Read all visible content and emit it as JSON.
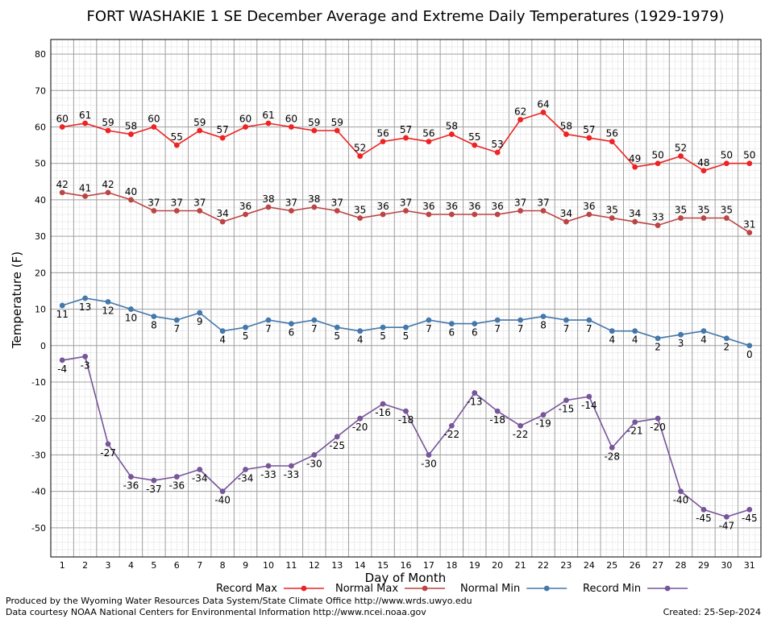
{
  "chart_data": {
    "type": "line",
    "title": "FORT WASHAKIE 1 SE December Average and Extreme Daily Temperatures (1929-1979)",
    "xlabel": "Day of Month",
    "ylabel": "Temperature (F)",
    "ylim": [
      -58,
      84
    ],
    "yticks": [
      -50,
      -40,
      -30,
      -20,
      -10,
      0,
      10,
      20,
      30,
      40,
      50,
      60,
      70,
      80
    ],
    "x": [
      1,
      2,
      3,
      4,
      5,
      6,
      7,
      8,
      9,
      10,
      11,
      12,
      13,
      14,
      15,
      16,
      17,
      18,
      19,
      20,
      21,
      22,
      23,
      24,
      25,
      26,
      27,
      28,
      29,
      30,
      31
    ],
    "grid": true,
    "legend_position": "bottom",
    "series": [
      {
        "name": "Record Max",
        "color": "#ee2222",
        "label_pos": "above",
        "values": [
          60,
          61,
          59,
          58,
          60,
          55,
          59,
          57,
          60,
          61,
          60,
          59,
          59,
          52,
          56,
          57,
          56,
          58,
          55,
          53,
          62,
          64,
          58,
          57,
          56,
          49,
          50,
          52,
          48,
          50,
          50
        ]
      },
      {
        "name": "Normal Max",
        "color": "#bb4444",
        "label_pos": "above",
        "values": [
          42,
          41,
          42,
          40,
          37,
          37,
          37,
          34,
          36,
          38,
          37,
          38,
          37,
          35,
          36,
          37,
          36,
          36,
          36,
          36,
          37,
          37,
          34,
          36,
          35,
          34,
          33,
          35,
          35,
          35,
          31
        ]
      },
      {
        "name": "Normal Min",
        "color": "#4477aa",
        "label_pos": "below",
        "values": [
          11,
          13,
          12,
          10,
          8,
          7,
          9,
          4,
          5,
          7,
          6,
          7,
          5,
          4,
          5,
          5,
          7,
          6,
          6,
          7,
          7,
          8,
          7,
          7,
          4,
          4,
          2,
          3,
          4,
          2,
          0
        ]
      },
      {
        "name": "Record Min",
        "color": "#775599",
        "label_pos": "below",
        "values": [
          -4,
          -3,
          -27,
          -36,
          -37,
          -36,
          -34,
          -40,
          -34,
          -33,
          -33,
          -30,
          -25,
          -20,
          -16,
          -18,
          -30,
          -22,
          -13,
          -18,
          -22,
          -19,
          -15,
          -14,
          -28,
          -21,
          -20,
          -40,
          -45,
          -47,
          -45
        ]
      }
    ]
  },
  "footer": {
    "credit": "Produced by the Wyoming Water Resources Data System/State Climate Office http://www.wrds.uwyo.edu",
    "source": "Data courtesy NOAA National Centers for Environmental Information http://www.ncei.noaa.gov",
    "created": "Created:  25-Sep-2024"
  }
}
